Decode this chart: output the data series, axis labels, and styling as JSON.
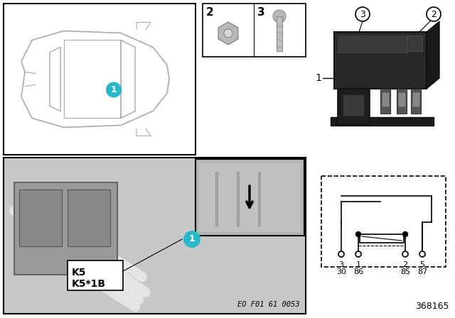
{
  "bg_color": "#ffffff",
  "label1_color": "#29b8c8",
  "label_text_color": "#ffffff",
  "pin_labels_row1": [
    "3",
    "1",
    "2",
    "5"
  ],
  "pin_labels_row2": [
    "30",
    "86",
    "85",
    "87"
  ],
  "diagram_id": "368165",
  "eo_code": "EO F01 61 0053",
  "car_line_color": "#aaaaaa",
  "relay_body_color": "#2a2a2a",
  "relay_connector_color": "#3a3a3a",
  "photo_bg_color": "#c8c8c8",
  "photo_component_color": "#b0b0b0",
  "wiring_color": "#d8d8d8"
}
